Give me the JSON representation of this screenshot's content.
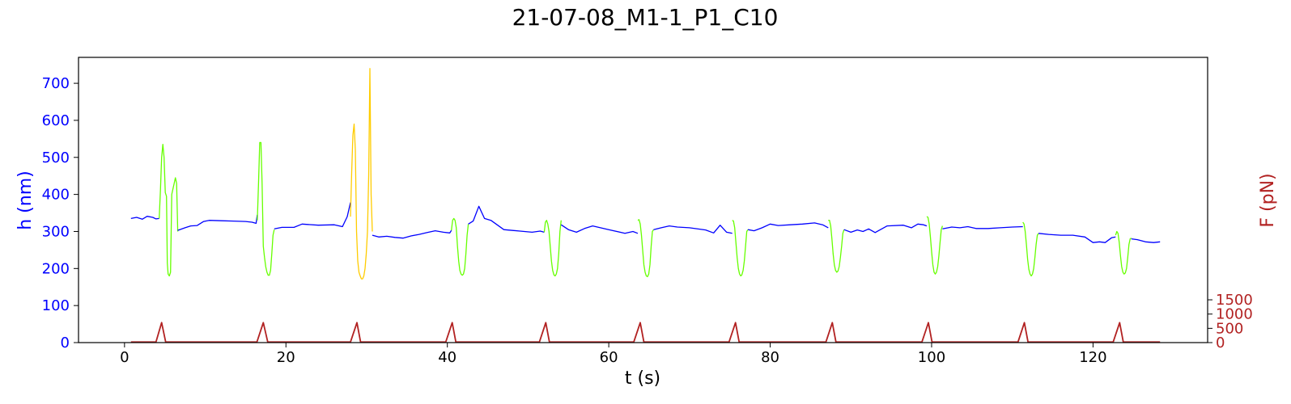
{
  "chart_data": {
    "type": "line",
    "title": "21-07-08_M1-1_P1_C10",
    "xlabel": "t (s)",
    "ylabel_left": "h (nm)",
    "ylabel_right": "F (pN)",
    "xlim": [
      -5.7,
      134.2
    ],
    "ylim_left": [
      0,
      770
    ],
    "ylim_right": [
      0,
      10000
    ],
    "x_ticks": [
      0,
      20,
      40,
      60,
      80,
      100,
      120
    ],
    "y_left_ticks": [
      0,
      100,
      200,
      300,
      400,
      500,
      600,
      700
    ],
    "y_right_ticks": [
      0,
      500,
      1000,
      1500
    ],
    "grid": false,
    "colors": {
      "baseline": "#0000ff",
      "indent": "#66ff00",
      "indent_highlight": "#ffcc00",
      "force": "#b22222",
      "left_axis": "#0000ff",
      "right_axis": "#b22222"
    },
    "series": [
      {
        "axis": "left",
        "color_key": "baseline",
        "x": [
          0.8,
          1.5,
          2.2,
          2.8,
          3.5,
          3.9,
          4.3
        ],
        "y": [
          335,
          338,
          333,
          341,
          338,
          334,
          335
        ]
      },
      {
        "axis": "left",
        "color_key": "indent",
        "x": [
          4.3,
          4.45,
          4.6,
          4.75,
          4.9,
          5.05,
          5.2,
          5.3,
          5.4,
          5.55,
          5.7,
          5.85,
          6.0,
          6.15,
          6.3,
          6.45,
          6.6
        ],
        "y": [
          335,
          410,
          500,
          535,
          500,
          405,
          395,
          215,
          185,
          180,
          190,
          400,
          415,
          430,
          445,
          430,
          300
        ]
      },
      {
        "axis": "left",
        "color_key": "baseline",
        "x": [
          6.6,
          7.5,
          8.2,
          9.0,
          9.8,
          10.5,
          12.0,
          13.5,
          15.0,
          15.8,
          16.3,
          16.45
        ],
        "y": [
          303,
          310,
          315,
          316,
          327,
          330,
          329,
          328,
          327,
          325,
          322,
          345
        ]
      },
      {
        "axis": "left",
        "color_key": "indent",
        "x": [
          16.45,
          16.6,
          16.75,
          16.9,
          17.05,
          17.2,
          17.35,
          17.5,
          17.65,
          17.8,
          17.95,
          18.1,
          18.25,
          18.4,
          18.55
        ],
        "y": [
          330,
          430,
          540,
          540,
          430,
          260,
          230,
          205,
          190,
          182,
          182,
          195,
          240,
          290,
          305
        ]
      },
      {
        "axis": "left",
        "color_key": "baseline",
        "x": [
          18.55,
          19.5,
          21.0,
          22.0,
          24.0,
          26.0,
          27.0,
          27.6,
          28.0
        ],
        "y": [
          307,
          311,
          311,
          320,
          317,
          318,
          313,
          340,
          378
        ]
      },
      {
        "axis": "left",
        "color_key": "indent_highlight",
        "x": [
          28.0,
          28.15,
          28.3,
          28.45,
          28.6,
          28.75,
          28.9,
          29.05,
          29.2,
          29.35,
          29.5,
          29.65,
          29.8,
          29.95,
          30.1,
          30.25,
          30.4,
          30.55,
          30.7
        ],
        "y": [
          340,
          460,
          560,
          590,
          520,
          300,
          220,
          190,
          180,
          172,
          172,
          180,
          200,
          240,
          300,
          450,
          740,
          400,
          300
        ]
      },
      {
        "axis": "left",
        "color_key": "baseline",
        "x": [
          30.7,
          31.5,
          32.5,
          33.5,
          34.5,
          35.5,
          36.5,
          37.5,
          38.5,
          39.5,
          40.3,
          40.5
        ],
        "y": [
          290,
          285,
          287,
          284,
          282,
          288,
          292,
          297,
          302,
          298,
          296,
          303
        ]
      },
      {
        "axis": "left",
        "color_key": "indent",
        "x": [
          40.5,
          40.65,
          40.8,
          40.95,
          41.1,
          41.25,
          41.4,
          41.55,
          41.7,
          41.85,
          42.0,
          42.15,
          42.3,
          42.45,
          42.6
        ],
        "y": [
          303,
          330,
          335,
          330,
          310,
          260,
          220,
          195,
          185,
          182,
          185,
          200,
          240,
          290,
          320
        ]
      },
      {
        "axis": "left",
        "color_key": "baseline",
        "x": [
          42.6,
          43.2,
          43.9,
          44.6,
          45.4,
          47.0,
          49.0,
          50.5,
          51.5,
          52.0
        ],
        "y": [
          320,
          328,
          368,
          335,
          330,
          305,
          301,
          298,
          301,
          298
        ]
      },
      {
        "axis": "left",
        "color_key": "indent",
        "x": [
          52.0,
          52.15,
          52.3,
          52.45,
          52.6,
          52.75,
          52.9,
          53.05,
          53.2,
          53.35,
          53.5,
          53.65,
          53.8,
          53.95,
          54.1
        ],
        "y": [
          298,
          325,
          330,
          320,
          300,
          260,
          220,
          195,
          183,
          180,
          185,
          200,
          240,
          300,
          330
        ]
      },
      {
        "axis": "left",
        "color_key": "baseline",
        "x": [
          54.1,
          55.0,
          56.0,
          57.0,
          58.0,
          60.0,
          62.0,
          63.0,
          63.6
        ],
        "y": [
          318,
          305,
          298,
          308,
          315,
          305,
          295,
          300,
          295
        ]
      },
      {
        "axis": "left",
        "color_key": "indent",
        "x": [
          63.6,
          63.75,
          63.9,
          64.05,
          64.2,
          64.35,
          64.5,
          64.65,
          64.8,
          64.95,
          65.1,
          65.25,
          65.4,
          65.55
        ],
        "y": [
          330,
          332,
          320,
          290,
          250,
          210,
          190,
          180,
          178,
          185,
          210,
          260,
          300,
          305
        ]
      },
      {
        "axis": "left",
        "color_key": "baseline",
        "x": [
          65.55,
          66.5,
          67.5,
          68.5,
          70.0,
          72.0,
          73.0,
          73.8,
          74.6,
          75.3
        ],
        "y": [
          305,
          310,
          315,
          312,
          310,
          304,
          296,
          317,
          298,
          295
        ]
      },
      {
        "axis": "left",
        "color_key": "indent",
        "x": [
          75.3,
          75.45,
          75.6,
          75.75,
          75.9,
          76.05,
          76.2,
          76.35,
          76.5,
          76.65,
          76.8,
          76.95,
          77.1,
          77.25
        ],
        "y": [
          330,
          328,
          310,
          270,
          230,
          200,
          185,
          180,
          183,
          195,
          220,
          260,
          300,
          305
        ]
      },
      {
        "axis": "left",
        "color_key": "baseline",
        "x": [
          77.25,
          78.0,
          79.0,
          80.0,
          81.0,
          82.5,
          84.0,
          85.5,
          86.5,
          87.2
        ],
        "y": [
          305,
          302,
          310,
          320,
          316,
          318,
          320,
          323,
          318,
          310
        ]
      },
      {
        "axis": "left",
        "color_key": "indent",
        "x": [
          87.2,
          87.35,
          87.5,
          87.65,
          87.8,
          87.95,
          88.1,
          88.25,
          88.4,
          88.55,
          88.7,
          88.85,
          89.0,
          89.15
        ],
        "y": [
          330,
          330,
          315,
          280,
          240,
          210,
          195,
          190,
          193,
          205,
          230,
          260,
          295,
          305
        ]
      },
      {
        "axis": "left",
        "color_key": "baseline",
        "x": [
          89.15,
          90.0,
          90.8,
          91.5,
          92.2,
          93.0,
          94.5,
          96.5,
          97.5,
          98.3,
          99.0,
          99.4
        ],
        "y": [
          305,
          298,
          304,
          300,
          307,
          297,
          315,
          317,
          310,
          320,
          318,
          315
        ]
      },
      {
        "axis": "left",
        "color_key": "indent",
        "x": [
          99.4,
          99.55,
          99.7,
          99.85,
          100.0,
          100.15,
          100.3,
          100.45,
          100.6,
          100.75,
          100.9,
          101.05,
          101.2,
          101.35
        ],
        "y": [
          340,
          338,
          320,
          285,
          245,
          210,
          190,
          185,
          190,
          205,
          235,
          270,
          305,
          315
        ]
      },
      {
        "axis": "left",
        "color_key": "baseline",
        "x": [
          101.35,
          102.5,
          103.5,
          104.5,
          105.5,
          107.0,
          108.5,
          110.0,
          111.3
        ],
        "y": [
          307,
          312,
          310,
          313,
          308,
          308,
          310,
          312,
          313
        ]
      },
      {
        "axis": "left",
        "color_key": "indent",
        "x": [
          111.3,
          111.45,
          111.6,
          111.75,
          111.9,
          112.05,
          112.2,
          112.35,
          112.5,
          112.65,
          112.8,
          112.95,
          113.1,
          113.25
        ],
        "y": [
          325,
          320,
          300,
          265,
          225,
          198,
          185,
          180,
          185,
          200,
          230,
          265,
          290,
          295
        ]
      },
      {
        "axis": "left",
        "color_key": "baseline",
        "x": [
          113.25,
          114.5,
          116.0,
          117.5,
          119.0,
          120.0,
          120.8,
          121.5,
          122.3,
          122.8
        ],
        "y": [
          295,
          292,
          290,
          290,
          285,
          270,
          272,
          270,
          283,
          285
        ]
      },
      {
        "axis": "left",
        "color_key": "indent",
        "x": [
          122.8,
          122.95,
          123.1,
          123.25,
          123.4,
          123.55,
          123.7,
          123.85,
          124.0,
          124.15,
          124.3,
          124.45,
          124.6,
          124.75
        ],
        "y": [
          290,
          300,
          295,
          270,
          235,
          205,
          190,
          185,
          188,
          200,
          230,
          265,
          280,
          282
        ]
      },
      {
        "axis": "left",
        "color_key": "baseline",
        "x": [
          124.75,
          125.5,
          126.5,
          127.5,
          128.3
        ],
        "y": [
          280,
          278,
          272,
          270,
          272
        ]
      },
      {
        "axis": "right",
        "color_key": "force",
        "x": [
          0.8,
          3.9,
          4.6,
          5.1,
          6.0,
          16.4,
          17.2,
          17.75,
          18.5,
          28.0,
          28.8,
          29.25,
          30.0,
          39.8,
          40.6,
          41.05,
          41.9,
          51.4,
          52.2,
          52.65,
          53.5,
          63.1,
          63.9,
          64.35,
          65.2,
          74.9,
          75.7,
          76.15,
          77.0,
          86.9,
          87.7,
          88.15,
          89.0,
          98.8,
          99.6,
          100.05,
          100.9,
          110.7,
          111.5,
          111.95,
          112.8,
          122.5,
          123.3,
          123.75,
          124.6,
          128.3
        ],
        "y": [
          20,
          20,
          700,
          20,
          20,
          20,
          700,
          20,
          20,
          20,
          700,
          20,
          20,
          20,
          700,
          20,
          20,
          20,
          700,
          20,
          20,
          20,
          700,
          20,
          20,
          20,
          700,
          20,
          20,
          20,
          700,
          20,
          20,
          20,
          700,
          20,
          20,
          20,
          700,
          20,
          20,
          20,
          700,
          20,
          20,
          20
        ]
      }
    ]
  }
}
